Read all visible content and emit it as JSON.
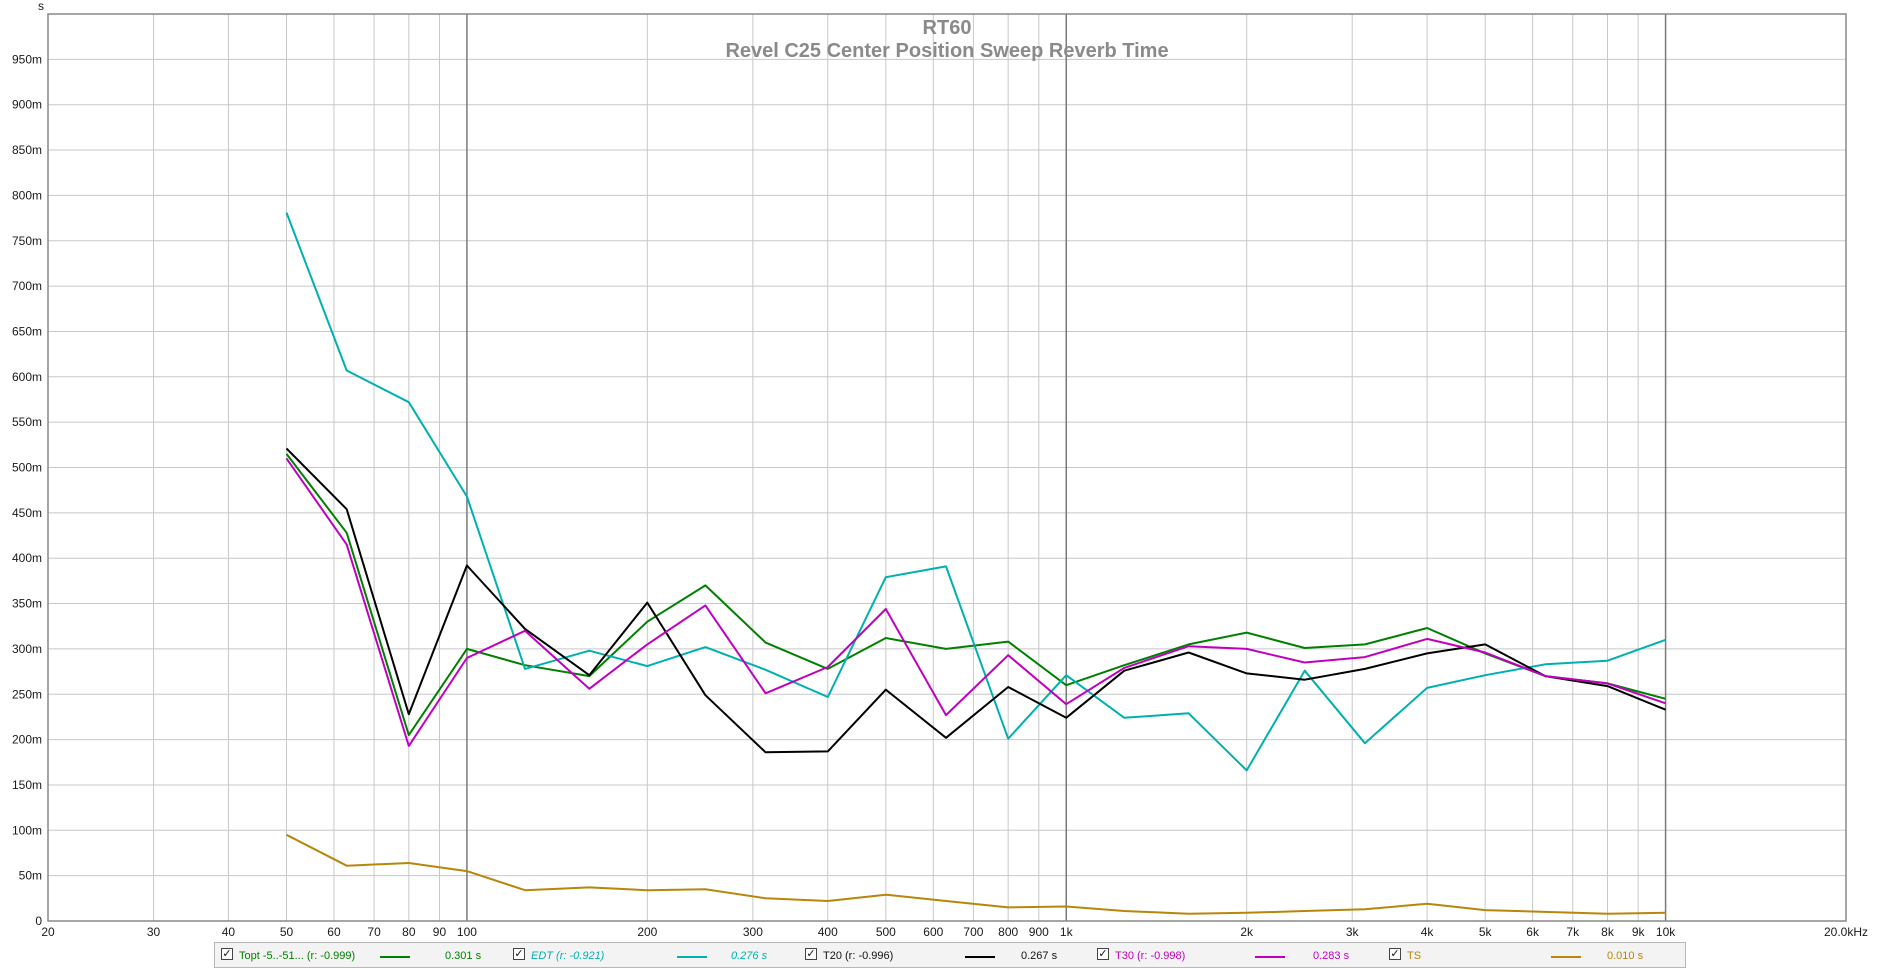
{
  "chart_data": {
    "type": "line",
    "title": "RT60",
    "subtitle": "Revel C25 Center Position Sweep Reverb Time",
    "ylabel": "s",
    "xlabel": "",
    "xscale": "log",
    "xlim": [
      20,
      20000
    ],
    "ylim": [
      0,
      1.0
    ],
    "grid": true,
    "x_tick_labels": [
      "20",
      "30",
      "40",
      "50",
      "60",
      "70",
      "80",
      "90",
      "100",
      "200",
      "300",
      "400",
      "500",
      "600",
      "700",
      "800",
      "900",
      "1k",
      "2k",
      "3k",
      "4k",
      "5k",
      "6k",
      "7k",
      "8k",
      "9k",
      "10k",
      "20.0kHz"
    ],
    "y_tick_labels": [
      "0",
      "50m",
      "100m",
      "150m",
      "200m",
      "250m",
      "300m",
      "350m",
      "400m",
      "450m",
      "500m",
      "550m",
      "600m",
      "650m",
      "700m",
      "750m",
      "800m",
      "850m",
      "900m",
      "950m"
    ],
    "x": [
      50,
      63,
      80,
      100,
      125,
      160,
      200,
      250,
      315,
      400,
      500,
      630,
      800,
      1000,
      1250,
      1600,
      2000,
      2500,
      3150,
      4000,
      5000,
      6300,
      8000,
      10000
    ],
    "series": [
      {
        "name": "Topt -5..-51... (r: -0.999)",
        "color": "#008000",
        "values": [
          0.515,
          0.428,
          0.205,
          0.3,
          0.282,
          0.27,
          0.33,
          0.37,
          0.307,
          0.278,
          0.312,
          0.3,
          0.308,
          0.26,
          0.282,
          0.305,
          0.318,
          0.301,
          0.305,
          0.323,
          0.295,
          0.27,
          0.262,
          0.245
        ]
      },
      {
        "name": "EDT (r: -0.921)",
        "color": "#00b0b0",
        "values": [
          0.781,
          0.607,
          0.572,
          0.468,
          0.278,
          0.298,
          0.281,
          0.302,
          0.277,
          0.247,
          0.379,
          0.391,
          0.201,
          0.271,
          0.224,
          0.229,
          0.166,
          0.276,
          0.196,
          0.257,
          0.271,
          0.283,
          0.287,
          0.31
        ]
      },
      {
        "name": "T20 (r: -0.996)",
        "color": "#000000",
        "values": [
          0.521,
          0.454,
          0.228,
          0.392,
          0.322,
          0.271,
          0.351,
          0.249,
          0.186,
          0.187,
          0.255,
          0.202,
          0.258,
          0.224,
          0.276,
          0.296,
          0.273,
          0.266,
          0.278,
          0.295,
          0.305,
          0.27,
          0.259,
          0.233
        ]
      },
      {
        "name": "T30 (r: -0.998)",
        "color": "#c000c0",
        "values": [
          0.51,
          0.415,
          0.193,
          0.29,
          0.32,
          0.256,
          0.305,
          0.348,
          0.251,
          0.28,
          0.344,
          0.227,
          0.293,
          0.239,
          0.279,
          0.303,
          0.3,
          0.285,
          0.291,
          0.311,
          0.296,
          0.27,
          0.262,
          0.24
        ]
      },
      {
        "name": "TS",
        "color": "#b8860b",
        "values": [
          0.095,
          0.061,
          0.064,
          0.055,
          0.034,
          0.037,
          0.034,
          0.035,
          0.025,
          0.022,
          0.029,
          0.022,
          0.015,
          0.016,
          0.011,
          0.008,
          0.009,
          0.011,
          0.013,
          0.019,
          0.012,
          0.01,
          0.008,
          0.009
        ]
      }
    ]
  },
  "legend": [
    {
      "label": "Topt -5..-51... (r: -0.999)",
      "value": "0.301 s",
      "color": "#008000",
      "italic": false,
      "checked": true
    },
    {
      "label": "EDT (r: -0.921)",
      "value": "0.276 s",
      "color": "#00b0b0",
      "italic": true,
      "checked": true
    },
    {
      "label": "T20 (r: -0.996)",
      "value": "0.267 s",
      "color": "#000000",
      "italic": false,
      "checked": true
    },
    {
      "label": "T30 (r: -0.998)",
      "value": "0.283 s",
      "color": "#c000c0",
      "italic": false,
      "checked": true
    },
    {
      "label": "TS",
      "value": "0.010 s",
      "color": "#b8860b",
      "italic": false,
      "checked": true
    }
  ]
}
